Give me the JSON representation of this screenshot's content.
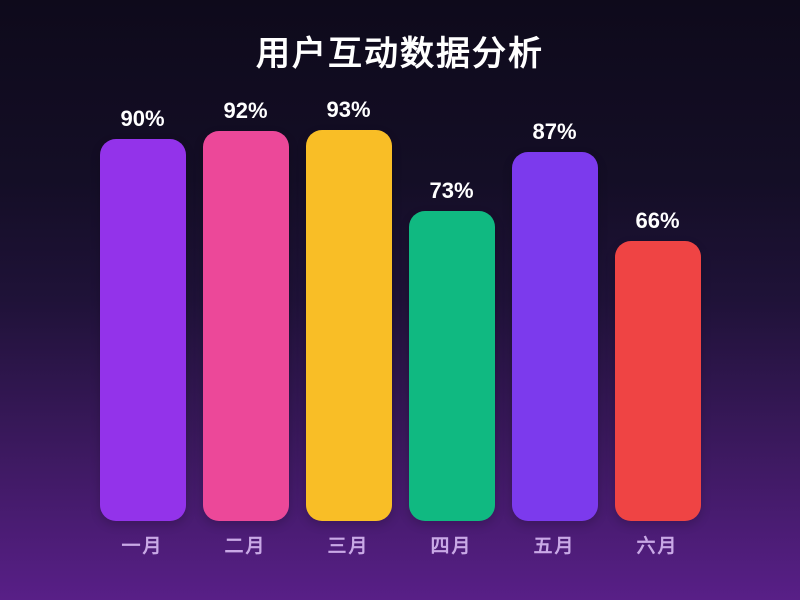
{
  "title": "用户互动数据分析",
  "chart_data": {
    "type": "bar",
    "title": "用户互动数据分析",
    "categories": [
      "一月",
      "二月",
      "三月",
      "四月",
      "五月",
      "六月"
    ],
    "values": [
      90,
      92,
      93,
      73,
      87,
      66
    ],
    "value_labels": [
      "90%",
      "92%",
      "93%",
      "73%",
      "87%",
      "66%"
    ],
    "bar_colors": [
      "#9333ea",
      "#ec4899",
      "#f9be26",
      "#10b981",
      "#7c3aed",
      "#ef4444"
    ],
    "xlabel": "",
    "ylabel": "",
    "ylim": [
      0,
      100
    ],
    "grid": false,
    "legend": false
  },
  "colors": {
    "background_top": "#0e0a1b",
    "background_bottom": "#581f87",
    "title_text": "#ffffff",
    "value_label_text": "#ffffff",
    "category_label_text": "#c9a9e6"
  }
}
